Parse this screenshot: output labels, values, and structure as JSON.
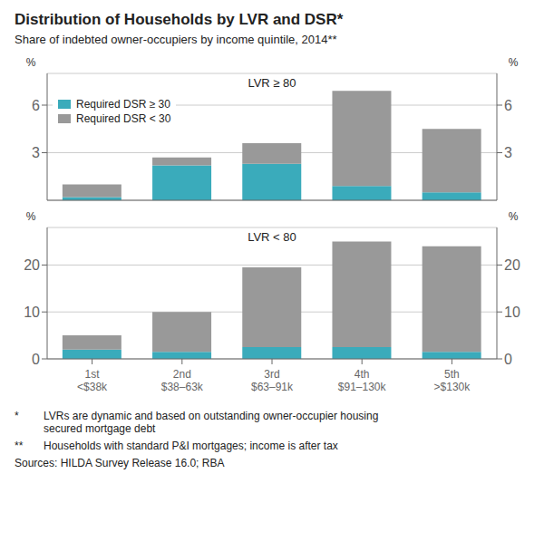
{
  "chart_data": [
    {
      "type": "bar",
      "stacked": true,
      "title": "Distribution of Households by LVR and DSR*",
      "subtitle": "Share of indebted owner-occupiers by income quintile, 2014**",
      "annotations": [
        "LVR ≥ 80"
      ],
      "categories": [
        "1st\n<$38k",
        "2nd\n$38–63k",
        "3rd\n$63–91k",
        "4th\n$91–130k",
        "5th\n>$130k"
      ],
      "series": [
        {
          "name": "Required DSR ≥ 30",
          "color": "#3aabbb",
          "values": [
            0.2,
            2.2,
            2.3,
            0.9,
            0.5
          ]
        },
        {
          "name": "Required DSR < 30",
          "color": "#999999",
          "values": [
            0.8,
            0.5,
            1.3,
            6.0,
            4.0
          ]
        }
      ],
      "ylabel": "%",
      "y2label": "%",
      "ylim": [
        0,
        8
      ],
      "yticks": [
        0,
        3,
        6
      ],
      "y2lim": [
        0,
        8
      ],
      "y2ticks": [
        0,
        3,
        6
      ],
      "grid": true,
      "legend": "upper left",
      "tick_labels": "y"
    },
    {
      "type": "bar",
      "stacked": true,
      "annotations": [
        "LVR < 80"
      ],
      "categories": [
        "1st\n<$38k",
        "2nd\n$38–63k",
        "3rd\n$63–91k",
        "4th\n$91–130k",
        "5th\n>$130k"
      ],
      "series": [
        {
          "name": "Required DSR ≥ 30",
          "color": "#3aabbb",
          "values": [
            2.0,
            1.5,
            2.5,
            2.5,
            1.5
          ]
        },
        {
          "name": "Required DSR < 30",
          "color": "#999999",
          "values": [
            3.0,
            8.5,
            17.0,
            22.5,
            22.5
          ]
        }
      ],
      "ylabel": "%",
      "y2label": "%",
      "ylim": [
        0,
        28
      ],
      "yticks": [
        0,
        10,
        20
      ],
      "y2lim": [
        0,
        28
      ],
      "y2ticks": [
        0,
        10,
        20
      ],
      "grid": true,
      "footnotes": [
        {
          "bullet": "*",
          "text": "LVRs are dynamic and based on outstanding owner-occupier housing\nsecured mortgage debt"
        },
        {
          "bullet": "**",
          "text": "Households with standard P&I mortgages; income is after tax"
        },
        {
          "text": "Sources: HILDA Survey Release 16.0; RBA"
        }
      ]
    }
  ]
}
